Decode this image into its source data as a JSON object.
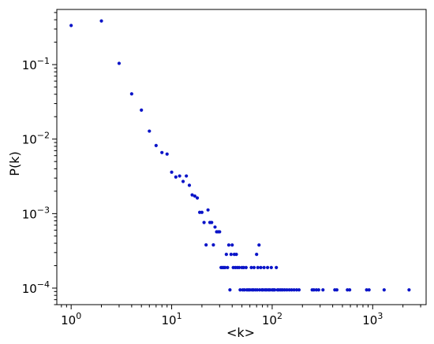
{
  "chart_data": {
    "type": "scatter",
    "title": "",
    "xlabel": "<k>",
    "ylabel": "P(k)",
    "x_scale": "log",
    "y_scale": "log",
    "xlim": [
      0.72,
      3400
    ],
    "ylim": [
      6e-05,
      0.55
    ],
    "grid": false,
    "marker_color": "#0a14c8",
    "x_ticks": [
      {
        "value": 1,
        "base": "10",
        "exp": "0"
      },
      {
        "value": 10,
        "base": "10",
        "exp": "1"
      },
      {
        "value": 100,
        "base": "10",
        "exp": "2"
      },
      {
        "value": 1000,
        "base": "10",
        "exp": "3"
      }
    ],
    "y_ticks": [
      {
        "value": 0.0001,
        "base": "10",
        "exp": "−4"
      },
      {
        "value": 0.001,
        "base": "10",
        "exp": "−3"
      },
      {
        "value": 0.01,
        "base": "10",
        "exp": "−2"
      },
      {
        "value": 0.1,
        "base": "10",
        "exp": "−1"
      }
    ],
    "points": [
      [
        1,
        0.335
      ],
      [
        2,
        0.385
      ],
      [
        3,
        0.104
      ],
      [
        4,
        0.0405
      ],
      [
        5,
        0.0245
      ],
      [
        6,
        0.0128
      ],
      [
        7,
        0.0082
      ],
      [
        8,
        0.0066
      ],
      [
        9,
        0.0063
      ],
      [
        10,
        0.0036
      ],
      [
        11,
        0.0031
      ],
      [
        12,
        0.0032
      ],
      [
        13,
        0.0027
      ],
      [
        14,
        0.0032
      ],
      [
        15,
        0.0024
      ],
      [
        16,
        0.00178
      ],
      [
        17,
        0.00172
      ],
      [
        18,
        0.00162
      ],
      [
        19,
        0.00104
      ],
      [
        20,
        0.00104
      ],
      [
        21,
        0.00076
      ],
      [
        22,
        0.00038
      ],
      [
        23,
        0.00112
      ],
      [
        24,
        0.00076
      ],
      [
        25,
        0.00076
      ],
      [
        26,
        0.00038
      ],
      [
        27,
        0.00066
      ],
      [
        28,
        0.00057
      ],
      [
        29,
        0.00057
      ],
      [
        30,
        0.00057
      ],
      [
        31,
        0.000189
      ],
      [
        32,
        0.000189
      ],
      [
        33,
        0.000189
      ],
      [
        34,
        0.000189
      ],
      [
        35,
        0.000284
      ],
      [
        36,
        0.000189
      ],
      [
        37,
        0.000379
      ],
      [
        38,
        9.47e-05
      ],
      [
        39,
        0.000284
      ],
      [
        40,
        0.000379
      ],
      [
        41,
        0.000189
      ],
      [
        42,
        0.000284
      ],
      [
        43,
        0.000189
      ],
      [
        44,
        0.000284
      ],
      [
        45,
        0.000189
      ],
      [
        47,
        0.000189
      ],
      [
        48,
        9.47e-05
      ],
      [
        50,
        0.000189
      ],
      [
        51,
        9.47e-05
      ],
      [
        52,
        0.000189
      ],
      [
        53,
        9.47e-05
      ],
      [
        55,
        0.000189
      ],
      [
        56,
        9.47e-05
      ],
      [
        58,
        9.47e-05
      ],
      [
        60,
        9.47e-05
      ],
      [
        62,
        0.000189
      ],
      [
        63,
        9.47e-05
      ],
      [
        65,
        9.47e-05
      ],
      [
        66,
        0.000189
      ],
      [
        68,
        9.47e-05
      ],
      [
        70,
        0.000284
      ],
      [
        71,
        9.47e-05
      ],
      [
        72,
        0.000189
      ],
      [
        74,
        0.000379
      ],
      [
        75,
        9.47e-05
      ],
      [
        77,
        0.000189
      ],
      [
        79,
        9.47e-05
      ],
      [
        81,
        9.47e-05
      ],
      [
        83,
        0.000189
      ],
      [
        85,
        9.47e-05
      ],
      [
        88,
        9.47e-05
      ],
      [
        90,
        0.000189
      ],
      [
        92,
        9.47e-05
      ],
      [
        95,
        9.47e-05
      ],
      [
        98,
        0.000189
      ],
      [
        100,
        9.47e-05
      ],
      [
        103,
        9.47e-05
      ],
      [
        106,
        9.47e-05
      ],
      [
        110,
        0.000189
      ],
      [
        113,
        9.47e-05
      ],
      [
        117,
        9.47e-05
      ],
      [
        122,
        9.47e-05
      ],
      [
        127,
        9.47e-05
      ],
      [
        133,
        9.47e-05
      ],
      [
        140,
        9.47e-05
      ],
      [
        148,
        9.47e-05
      ],
      [
        156,
        9.47e-05
      ],
      [
        165,
        9.47e-05
      ],
      [
        175,
        9.47e-05
      ],
      [
        185,
        9.47e-05
      ],
      [
        250,
        9.47e-05
      ],
      [
        260,
        9.47e-05
      ],
      [
        275,
        9.47e-05
      ],
      [
        290,
        9.47e-05
      ],
      [
        320,
        9.47e-05
      ],
      [
        420,
        9.47e-05
      ],
      [
        440,
        9.47e-05
      ],
      [
        560,
        9.47e-05
      ],
      [
        590,
        9.47e-05
      ],
      [
        870,
        9.47e-05
      ],
      [
        920,
        9.47e-05
      ],
      [
        1300,
        9.47e-05
      ],
      [
        2300,
        9.47e-05
      ]
    ]
  }
}
